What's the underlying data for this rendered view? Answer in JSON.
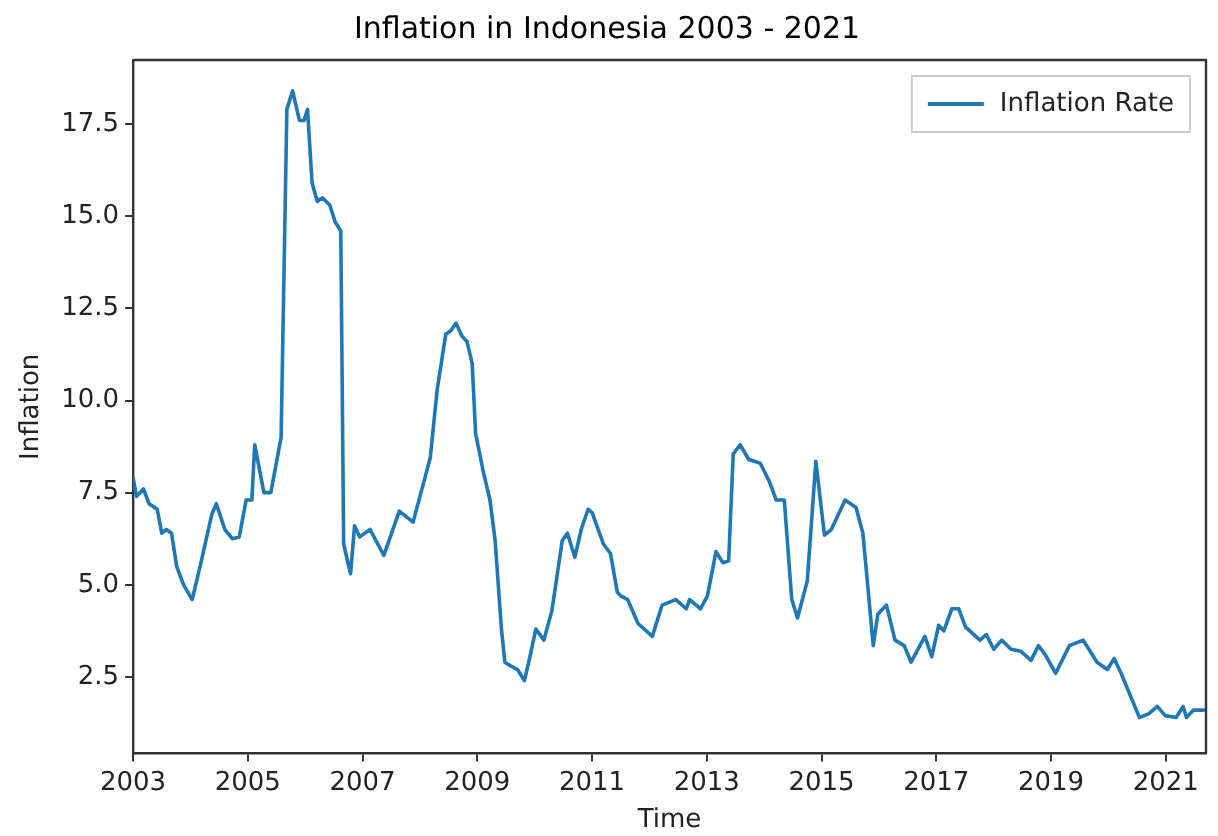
{
  "chart_data": {
    "type": "line",
    "title": "Inflation in Indonesia 2003 - 2021",
    "xlabel": "Time",
    "ylabel": "Inflation",
    "xlim": [
      2003,
      2021.7
    ],
    "xticks": [
      2003,
      2005,
      2007,
      2009,
      2011,
      2013,
      2015,
      2017,
      2019,
      2021
    ],
    "ylim": [
      0.42,
      19.24
    ],
    "yticks": [
      2.5,
      {
        "value": 5,
        "label": "5.0"
      },
      7.5,
      {
        "value": 10,
        "label": "10.0"
      },
      12.5,
      {
        "value": 15,
        "label": "15.0"
      },
      17.5
    ],
    "grid": false,
    "legend": "top right",
    "marker": "none",
    "line_style": "solid",
    "series": [
      {
        "name": "Inflation Rate",
        "color": "#1f77b4",
        "x": [
          2003.0,
          2003.06,
          2003.18,
          2003.28,
          2003.42,
          2003.5,
          2003.58,
          2003.67,
          2003.76,
          2003.88,
          2004.03,
          2004.19,
          2004.37,
          2004.45,
          2004.6,
          2004.73,
          2004.85,
          2004.97,
          2005.07,
          2005.12,
          2005.28,
          2005.4,
          2005.58,
          2005.68,
          2005.78,
          2005.9,
          2005.98,
          2006.04,
          2006.12,
          2006.21,
          2006.3,
          2006.43,
          2006.52,
          2006.62,
          2006.67,
          2006.79,
          2006.86,
          2006.95,
          2007.13,
          2007.37,
          2007.64,
          2007.88,
          2008.0,
          2008.18,
          2008.3,
          2008.45,
          2008.54,
          2008.63,
          2008.73,
          2008.82,
          2008.91,
          2008.97,
          2009.1,
          2009.22,
          2009.31,
          2009.42,
          2009.48,
          2009.58,
          2009.7,
          2009.82,
          2009.91,
          2010.02,
          2010.16,
          2010.3,
          2010.48,
          2010.57,
          2010.7,
          2010.81,
          2010.93,
          2011.0,
          2011.2,
          2011.32,
          2011.44,
          2011.5,
          2011.62,
          2011.8,
          2012.05,
          2012.22,
          2012.46,
          2012.64,
          2012.7,
          2012.89,
          2013.01,
          2013.16,
          2013.28,
          2013.38,
          2013.46,
          2013.58,
          2013.73,
          2013.93,
          2014.09,
          2014.21,
          2014.35,
          2014.48,
          2014.58,
          2014.75,
          2014.9,
          2015.05,
          2015.17,
          2015.41,
          2015.6,
          2015.72,
          2015.9,
          2015.98,
          2016.13,
          2016.28,
          2016.44,
          2016.56,
          2016.8,
          2016.92,
          2017.04,
          2017.13,
          2017.27,
          2017.39,
          2017.51,
          2017.76,
          2017.87,
          2018.0,
          2018.14,
          2018.3,
          2018.47,
          2018.65,
          2018.78,
          2018.9,
          2019.08,
          2019.32,
          2019.56,
          2019.8,
          2019.98,
          2020.1,
          2020.22,
          2020.34,
          2020.54,
          2020.7,
          2020.85,
          2020.99,
          2021.18,
          2021.3,
          2021.36,
          2021.48,
          2021.66
        ],
        "values": [
          7.9,
          7.4,
          7.6,
          7.2,
          7.05,
          6.4,
          6.5,
          6.4,
          5.5,
          5.0,
          4.6,
          5.65,
          6.9,
          7.2,
          6.5,
          6.25,
          6.3,
          7.3,
          7.3,
          8.8,
          7.5,
          7.5,
          9.0,
          17.9,
          18.4,
          17.6,
          17.6,
          17.9,
          15.9,
          15.4,
          15.5,
          15.3,
          14.85,
          14.6,
          6.1,
          5.3,
          6.6,
          6.3,
          6.5,
          5.8,
          7.0,
          6.7,
          7.4,
          8.45,
          10.3,
          11.8,
          11.9,
          12.1,
          11.75,
          11.6,
          11.0,
          9.1,
          8.1,
          7.3,
          6.2,
          3.8,
          2.9,
          2.8,
          2.7,
          2.4,
          3.0,
          3.8,
          3.5,
          4.3,
          6.2,
          6.4,
          5.75,
          6.5,
          7.05,
          6.96,
          6.1,
          5.85,
          4.8,
          4.7,
          4.6,
          3.95,
          3.6,
          4.45,
          4.6,
          4.35,
          4.6,
          4.35,
          4.7,
          5.9,
          5.6,
          5.65,
          8.55,
          8.8,
          8.4,
          8.3,
          7.8,
          7.3,
          7.3,
          4.6,
          4.1,
          5.1,
          8.35,
          6.35,
          6.5,
          7.3,
          7.1,
          6.4,
          3.35,
          4.2,
          4.45,
          3.5,
          3.35,
          2.9,
          3.6,
          3.05,
          3.9,
          3.75,
          4.35,
          4.35,
          3.85,
          3.5,
          3.65,
          3.25,
          3.5,
          3.25,
          3.2,
          2.95,
          3.35,
          3.1,
          2.6,
          3.35,
          3.5,
          2.9,
          2.7,
          3.0,
          2.6,
          2.15,
          1.4,
          1.5,
          1.7,
          1.45,
          1.4,
          1.7,
          1.4,
          1.6,
          1.6
        ]
      }
    ]
  }
}
